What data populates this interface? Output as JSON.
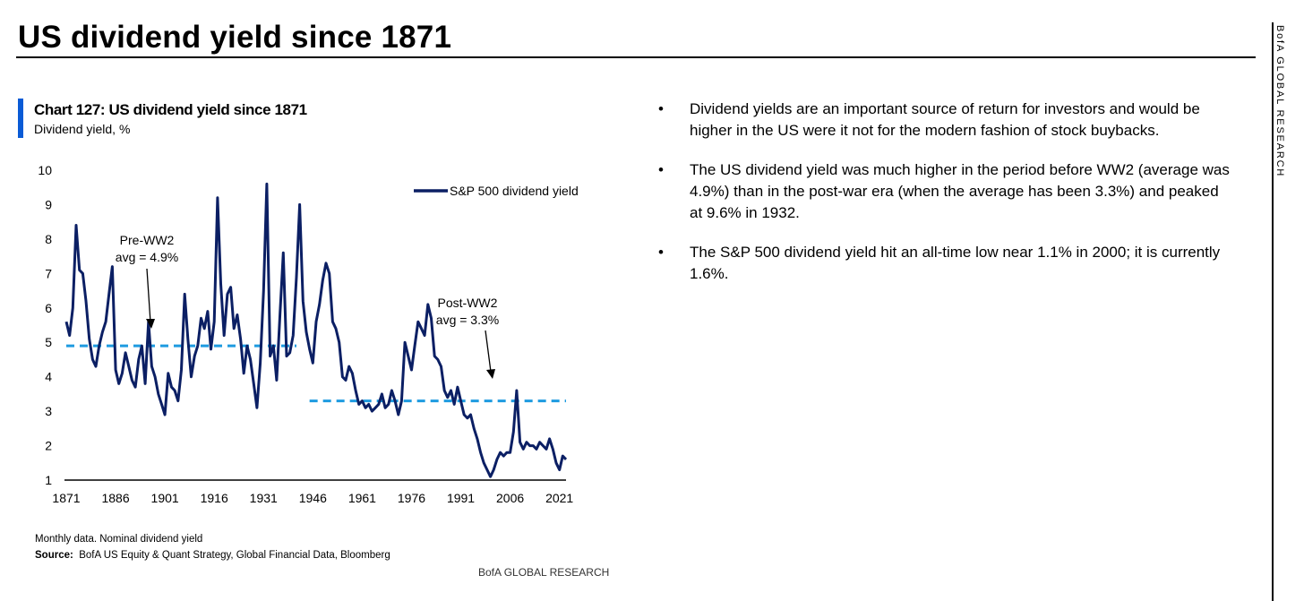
{
  "page": {
    "title": "US dividend yield since 1871",
    "side_label": "BofA GLOBAL RESEARCH"
  },
  "chart": {
    "label": "Chart 127: US dividend yield since 1871",
    "subtitle": "Dividend yield, %",
    "note": "Monthly data. Nominal dividend yield",
    "source_label": "Source:",
    "source_text": "BofA US Equity & Quant Strategy, Global Financial Data, Bloomberg",
    "footer": "BofA GLOBAL RESEARCH"
  },
  "colors": {
    "series": "#0b1f64",
    "average": "#1e9be0",
    "accent": "#0a5bd6"
  },
  "bullets": [
    "Dividend yields are an important source of return for investors and would be higher in the US were it not for the modern fashion of stock buybacks.",
    "The US dividend yield was much higher in the period before WW2 (average was 4.9%) than in the post-war era (when the average has been 3.3%) and peaked at 9.6% in 1932.",
    "The S&P 500 dividend yield hit an all-time low near 1.1% in 2000; it is currently 1.6%."
  ],
  "chart_data": {
    "type": "line",
    "title": "Chart 127: US dividend yield since 1871",
    "ylabel": "Dividend yield, %",
    "xlabel": "",
    "xlim": [
      1871,
      2023
    ],
    "ylim": [
      1,
      10
    ],
    "x_ticks": [
      1871,
      1886,
      1901,
      1916,
      1931,
      1946,
      1961,
      1976,
      1991,
      2006,
      2021
    ],
    "y_ticks": [
      1,
      2,
      3,
      4,
      5,
      6,
      7,
      8,
      9,
      10
    ],
    "legend": "S&P 500 dividend yield",
    "series": [
      {
        "name": "S&P 500 dividend yield",
        "x": [
          1871,
          1872,
          1873,
          1874,
          1875,
          1876,
          1877,
          1878,
          1879,
          1880,
          1881,
          1882,
          1883,
          1884,
          1885,
          1886,
          1887,
          1888,
          1889,
          1890,
          1891,
          1892,
          1893,
          1894,
          1895,
          1896,
          1897,
          1898,
          1899,
          1900,
          1901,
          1902,
          1903,
          1904,
          1905,
          1906,
          1907,
          1908,
          1909,
          1910,
          1911,
          1912,
          1913,
          1914,
          1915,
          1916,
          1917,
          1918,
          1919,
          1920,
          1921,
          1922,
          1923,
          1924,
          1925,
          1926,
          1927,
          1928,
          1929,
          1930,
          1931,
          1932,
          1933,
          1934,
          1935,
          1936,
          1937,
          1938,
          1939,
          1940,
          1941,
          1942,
          1943,
          1944,
          1945,
          1946,
          1947,
          1948,
          1949,
          1950,
          1951,
          1952,
          1953,
          1954,
          1955,
          1956,
          1957,
          1958,
          1959,
          1960,
          1961,
          1962,
          1963,
          1964,
          1965,
          1966,
          1967,
          1968,
          1969,
          1970,
          1971,
          1972,
          1973,
          1974,
          1975,
          1976,
          1977,
          1978,
          1979,
          1980,
          1981,
          1982,
          1983,
          1984,
          1985,
          1986,
          1987,
          1988,
          1989,
          1990,
          1991,
          1992,
          1993,
          1994,
          1995,
          1996,
          1997,
          1998,
          1999,
          2000,
          2001,
          2002,
          2003,
          2004,
          2005,
          2006,
          2007,
          2008,
          2009,
          2010,
          2011,
          2012,
          2013,
          2014,
          2015,
          2016,
          2017,
          2018,
          2019,
          2020,
          2021,
          2022,
          2023
        ],
        "values": [
          5.6,
          5.2,
          6.0,
          8.4,
          7.1,
          7.0,
          6.2,
          5.1,
          4.5,
          4.3,
          4.9,
          5.3,
          5.6,
          6.4,
          7.2,
          4.2,
          3.8,
          4.1,
          4.7,
          4.3,
          3.9,
          3.7,
          4.5,
          4.9,
          3.8,
          5.6,
          4.3,
          4.0,
          3.5,
          3.2,
          2.9,
          4.1,
          3.7,
          3.6,
          3.3,
          4.2,
          6.4,
          5.1,
          4.0,
          4.6,
          4.9,
          5.7,
          5.4,
          5.9,
          4.8,
          5.6,
          9.2,
          6.7,
          5.2,
          6.4,
          6.6,
          5.4,
          5.8,
          5.1,
          4.1,
          4.9,
          4.5,
          3.8,
          3.1,
          4.4,
          6.5,
          9.6,
          4.6,
          4.9,
          3.9,
          5.8,
          7.6,
          4.6,
          4.7,
          5.2,
          6.9,
          9.0,
          6.2,
          5.3,
          4.8,
          4.4,
          5.6,
          6.1,
          6.8,
          7.3,
          7.0,
          5.6,
          5.4,
          5.0,
          4.0,
          3.9,
          4.3,
          4.1,
          3.6,
          3.2,
          3.3,
          3.1,
          3.2,
          3.0,
          3.1,
          3.2,
          3.5,
          3.1,
          3.2,
          3.6,
          3.3,
          2.9,
          3.3,
          5.0,
          4.6,
          4.2,
          4.9,
          5.6,
          5.4,
          5.2,
          6.1,
          5.7,
          4.6,
          4.5,
          4.3,
          3.6,
          3.4,
          3.6,
          3.2,
          3.7,
          3.3,
          2.9,
          2.8,
          2.9,
          2.5,
          2.2,
          1.8,
          1.5,
          1.3,
          1.1,
          1.3,
          1.6,
          1.8,
          1.7,
          1.8,
          1.8,
          2.4,
          3.6,
          2.1,
          1.9,
          2.1,
          2.0,
          2.0,
          1.9,
          2.1,
          2.0,
          1.9,
          2.2,
          1.9,
          1.5,
          1.3,
          1.7,
          1.6
        ]
      }
    ],
    "averages": [
      {
        "label": "Pre-WW2 avg",
        "value": 4.9,
        "from": 1871,
        "to": 1941
      },
      {
        "label": "Post-WW2 avg",
        "value": 3.3,
        "from": 1945,
        "to": 2023
      }
    ],
    "annotations": [
      {
        "line1": "Pre-WW2",
        "line2": "avg = 4.9%"
      },
      {
        "line1": "Post-WW2",
        "line2": "avg = 3.3%"
      }
    ]
  }
}
